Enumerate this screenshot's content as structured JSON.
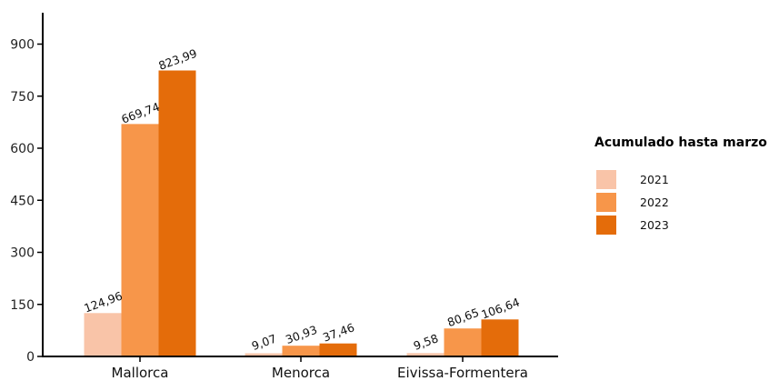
{
  "chart_data": {
    "type": "bar",
    "categories": [
      "Mallorca",
      "Menorca",
      "Eivissa-Formentera"
    ],
    "series": [
      {
        "name": "2021",
        "values": [
          124.96,
          9.07,
          9.58
        ],
        "labels": [
          "124,96",
          "9,07",
          "9,58"
        ],
        "color": "#f9c4a8"
      },
      {
        "name": "2022",
        "values": [
          669.74,
          30.93,
          80.65
        ],
        "labels": [
          "669,74",
          "30,93",
          "80,65"
        ],
        "color": "#f7964a"
      },
      {
        "name": "2023",
        "values": [
          823.99,
          37.46,
          106.64
        ],
        "labels": [
          "823,99",
          "37,46",
          "106,64"
        ],
        "color": "#e46c0a"
      }
    ],
    "yticks": [
      0,
      150,
      300,
      450,
      600,
      750,
      900
    ],
    "ylim": [
      0,
      950
    ],
    "title": "",
    "xlabel": "",
    "ylabel": "",
    "legend_title": "Acumulado hasta marzo",
    "legend_position": "right",
    "grid": false
  }
}
